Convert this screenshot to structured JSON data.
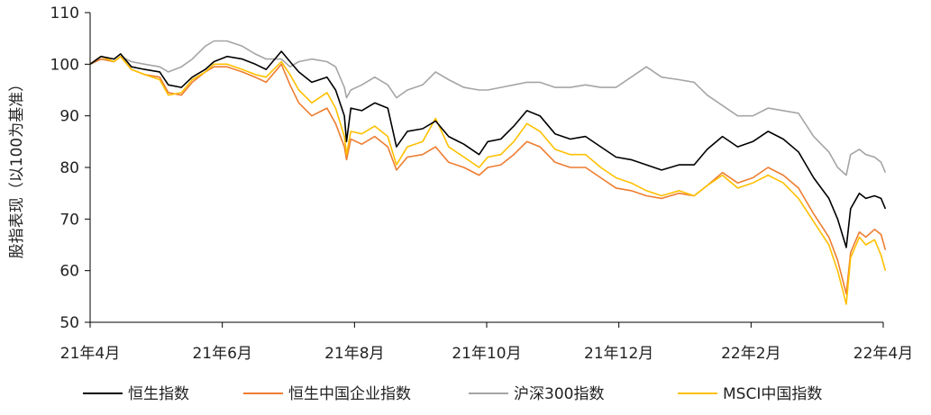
{
  "chart_data": {
    "type": "line",
    "title": "",
    "xlabel": "",
    "ylabel": "股指表现（以100为基准）",
    "ylim": [
      50,
      110
    ],
    "yticks": [
      "50",
      "60",
      "70",
      "80",
      "90",
      "100",
      "110"
    ],
    "xticks": [
      "21年4月",
      "21年6月",
      "21年8月",
      "21年10月",
      "21年12月",
      "22年2月",
      "22年4月"
    ],
    "xlim": [
      "2021-04-01",
      "2022-04-01"
    ],
    "grid": false,
    "legend_position": "bottom",
    "series": [
      {
        "name": "恒生指数",
        "color": "#000000",
        "points": [
          [
            "2021-04-01",
            100
          ],
          [
            "2021-04-06",
            101.5
          ],
          [
            "2021-04-12",
            101
          ],
          [
            "2021-04-15",
            102
          ],
          [
            "2021-04-20",
            99.5
          ],
          [
            "2021-04-26",
            99
          ],
          [
            "2021-05-03",
            98.5
          ],
          [
            "2021-05-07",
            96
          ],
          [
            "2021-05-13",
            95.5
          ],
          [
            "2021-05-18",
            97.5
          ],
          [
            "2021-05-24",
            99
          ],
          [
            "2021-05-28",
            100.5
          ],
          [
            "2021-06-03",
            101.5
          ],
          [
            "2021-06-10",
            101
          ],
          [
            "2021-06-16",
            100
          ],
          [
            "2021-06-21",
            99
          ],
          [
            "2021-06-28",
            102.5
          ],
          [
            "2021-07-02",
            100.5
          ],
          [
            "2021-07-06",
            98.5
          ],
          [
            "2021-07-12",
            96.5
          ],
          [
            "2021-07-19",
            97.5
          ],
          [
            "2021-07-23",
            95
          ],
          [
            "2021-07-27",
            90
          ],
          [
            "2021-07-28",
            85
          ],
          [
            "2021-07-30",
            91.5
          ],
          [
            "2021-08-04",
            91
          ],
          [
            "2021-08-10",
            92.5
          ],
          [
            "2021-08-16",
            91.5
          ],
          [
            "2021-08-20",
            84
          ],
          [
            "2021-08-25",
            87
          ],
          [
            "2021-09-01",
            87.5
          ],
          [
            "2021-09-07",
            89
          ],
          [
            "2021-09-13",
            86
          ],
          [
            "2021-09-20",
            84.5
          ],
          [
            "2021-09-27",
            82.5
          ],
          [
            "2021-10-01",
            85
          ],
          [
            "2021-10-07",
            85.5
          ],
          [
            "2021-10-13",
            88
          ],
          [
            "2021-10-19",
            91
          ],
          [
            "2021-10-25",
            90
          ],
          [
            "2021-11-01",
            86.5
          ],
          [
            "2021-11-08",
            85.5
          ],
          [
            "2021-11-15",
            86
          ],
          [
            "2021-11-22",
            84
          ],
          [
            "2021-11-29",
            82
          ],
          [
            "2021-12-06",
            81.5
          ],
          [
            "2021-12-13",
            80.5
          ],
          [
            "2021-12-20",
            79.5
          ],
          [
            "2021-12-28",
            80.5
          ],
          [
            "2022-01-04",
            80.5
          ],
          [
            "2022-01-10",
            83.5
          ],
          [
            "2022-01-17",
            86
          ],
          [
            "2022-01-24",
            84
          ],
          [
            "2022-01-31",
            85
          ],
          [
            "2022-02-07",
            87
          ],
          [
            "2022-02-14",
            85.5
          ],
          [
            "2022-02-21",
            83
          ],
          [
            "2022-02-28",
            78
          ],
          [
            "2022-03-07",
            74
          ],
          [
            "2022-03-11",
            70
          ],
          [
            "2022-03-15",
            64.5
          ],
          [
            "2022-03-17",
            72
          ],
          [
            "2022-03-21",
            75
          ],
          [
            "2022-03-24",
            74
          ],
          [
            "2022-03-28",
            74.5
          ],
          [
            "2022-03-31",
            74
          ],
          [
            "2022-04-02",
            72
          ]
        ]
      },
      {
        "name": "恒生中国企业指数",
        "color": "#ED7D31",
        "points": [
          [
            "2021-04-01",
            100
          ],
          [
            "2021-04-06",
            101
          ],
          [
            "2021-04-12",
            100.5
          ],
          [
            "2021-04-15",
            101.5
          ],
          [
            "2021-04-20",
            99
          ],
          [
            "2021-04-26",
            98
          ],
          [
            "2021-05-03",
            97.5
          ],
          [
            "2021-05-07",
            94.5
          ],
          [
            "2021-05-13",
            94
          ],
          [
            "2021-05-18",
            96.5
          ],
          [
            "2021-05-24",
            98.5
          ],
          [
            "2021-05-28",
            99.5
          ],
          [
            "2021-06-03",
            99.5
          ],
          [
            "2021-06-10",
            98.5
          ],
          [
            "2021-06-16",
            97.5
          ],
          [
            "2021-06-21",
            96.5
          ],
          [
            "2021-06-28",
            100
          ],
          [
            "2021-07-02",
            96
          ],
          [
            "2021-07-06",
            92.5
          ],
          [
            "2021-07-12",
            90
          ],
          [
            "2021-07-19",
            91.5
          ],
          [
            "2021-07-23",
            88.5
          ],
          [
            "2021-07-27",
            84
          ],
          [
            "2021-07-28",
            81.5
          ],
          [
            "2021-07-30",
            85.5
          ],
          [
            "2021-08-04",
            84.5
          ],
          [
            "2021-08-10",
            86
          ],
          [
            "2021-08-16",
            84
          ],
          [
            "2021-08-20",
            79.5
          ],
          [
            "2021-08-25",
            82
          ],
          [
            "2021-09-01",
            82.5
          ],
          [
            "2021-09-07",
            84
          ],
          [
            "2021-09-13",
            81
          ],
          [
            "2021-09-20",
            80
          ],
          [
            "2021-09-27",
            78.5
          ],
          [
            "2021-10-01",
            80
          ],
          [
            "2021-10-07",
            80.5
          ],
          [
            "2021-10-13",
            82.5
          ],
          [
            "2021-10-19",
            85
          ],
          [
            "2021-10-25",
            84
          ],
          [
            "2021-11-01",
            81
          ],
          [
            "2021-11-08",
            80
          ],
          [
            "2021-11-15",
            80
          ],
          [
            "2021-11-22",
            78
          ],
          [
            "2021-11-29",
            76
          ],
          [
            "2021-12-06",
            75.5
          ],
          [
            "2021-12-13",
            74.5
          ],
          [
            "2021-12-20",
            74
          ],
          [
            "2021-12-28",
            75
          ],
          [
            "2022-01-04",
            74.5
          ],
          [
            "2022-01-10",
            76.5
          ],
          [
            "2022-01-17",
            79
          ],
          [
            "2022-01-24",
            77
          ],
          [
            "2022-01-31",
            78
          ],
          [
            "2022-02-07",
            80
          ],
          [
            "2022-02-14",
            78.5
          ],
          [
            "2022-02-21",
            76
          ],
          [
            "2022-02-28",
            71
          ],
          [
            "2022-03-07",
            66.5
          ],
          [
            "2022-03-11",
            62
          ],
          [
            "2022-03-15",
            55.5
          ],
          [
            "2022-03-17",
            63.5
          ],
          [
            "2022-03-21",
            67.5
          ],
          [
            "2022-03-24",
            66.5
          ],
          [
            "2022-03-28",
            68
          ],
          [
            "2022-03-31",
            67
          ],
          [
            "2022-04-02",
            64
          ]
        ]
      },
      {
        "name": "沪深300指数",
        "color": "#A5A5A5",
        "points": [
          [
            "2021-04-01",
            100
          ],
          [
            "2021-04-06",
            101
          ],
          [
            "2021-04-12",
            100.5
          ],
          [
            "2021-04-15",
            101.5
          ],
          [
            "2021-04-20",
            100.5
          ],
          [
            "2021-04-26",
            100
          ],
          [
            "2021-05-03",
            99.5
          ],
          [
            "2021-05-07",
            98.5
          ],
          [
            "2021-05-13",
            99.5
          ],
          [
            "2021-05-18",
            101
          ],
          [
            "2021-05-24",
            103.5
          ],
          [
            "2021-05-28",
            104.5
          ],
          [
            "2021-06-03",
            104.5
          ],
          [
            "2021-06-10",
            103.5
          ],
          [
            "2021-06-16",
            102
          ],
          [
            "2021-06-21",
            101
          ],
          [
            "2021-06-28",
            101
          ],
          [
            "2021-07-02",
            99.5
          ],
          [
            "2021-07-06",
            100.5
          ],
          [
            "2021-07-12",
            101
          ],
          [
            "2021-07-19",
            100.5
          ],
          [
            "2021-07-23",
            99.5
          ],
          [
            "2021-07-27",
            95.5
          ],
          [
            "2021-07-28",
            93.5
          ],
          [
            "2021-07-30",
            95
          ],
          [
            "2021-08-04",
            96
          ],
          [
            "2021-08-10",
            97.5
          ],
          [
            "2021-08-16",
            96
          ],
          [
            "2021-08-20",
            93.5
          ],
          [
            "2021-08-25",
            95
          ],
          [
            "2021-09-01",
            96
          ],
          [
            "2021-09-07",
            98.5
          ],
          [
            "2021-09-13",
            97
          ],
          [
            "2021-09-20",
            95.5
          ],
          [
            "2021-09-27",
            95
          ],
          [
            "2021-10-01",
            95
          ],
          [
            "2021-10-07",
            95.5
          ],
          [
            "2021-10-13",
            96
          ],
          [
            "2021-10-19",
            96.5
          ],
          [
            "2021-10-25",
            96.5
          ],
          [
            "2021-11-01",
            95.5
          ],
          [
            "2021-11-08",
            95.5
          ],
          [
            "2021-11-15",
            96
          ],
          [
            "2021-11-22",
            95.5
          ],
          [
            "2021-11-29",
            95.5
          ],
          [
            "2021-12-06",
            97.5
          ],
          [
            "2021-12-13",
            99.5
          ],
          [
            "2021-12-20",
            97.5
          ],
          [
            "2021-12-28",
            97
          ],
          [
            "2022-01-04",
            96.5
          ],
          [
            "2022-01-10",
            94
          ],
          [
            "2022-01-17",
            92
          ],
          [
            "2022-01-24",
            90
          ],
          [
            "2022-01-31",
            90
          ],
          [
            "2022-02-07",
            91.5
          ],
          [
            "2022-02-14",
            91
          ],
          [
            "2022-02-21",
            90.5
          ],
          [
            "2022-02-28",
            86
          ],
          [
            "2022-03-07",
            83
          ],
          [
            "2022-03-11",
            80
          ],
          [
            "2022-03-15",
            78.5
          ],
          [
            "2022-03-17",
            82.5
          ],
          [
            "2022-03-21",
            83.5
          ],
          [
            "2022-03-24",
            82.5
          ],
          [
            "2022-03-28",
            82
          ],
          [
            "2022-03-31",
            81
          ],
          [
            "2022-04-02",
            79
          ]
        ]
      },
      {
        "name": "MSCI中国指数",
        "color": "#FFC000",
        "points": [
          [
            "2021-04-01",
            100
          ],
          [
            "2021-04-06",
            101.5
          ],
          [
            "2021-04-12",
            100.5
          ],
          [
            "2021-04-15",
            101.5
          ],
          [
            "2021-04-20",
            99
          ],
          [
            "2021-04-26",
            98
          ],
          [
            "2021-05-03",
            97
          ],
          [
            "2021-05-07",
            94
          ],
          [
            "2021-05-13",
            94.5
          ],
          [
            "2021-05-18",
            97
          ],
          [
            "2021-05-24",
            98.5
          ],
          [
            "2021-05-28",
            100
          ],
          [
            "2021-06-03",
            100
          ],
          [
            "2021-06-10",
            99
          ],
          [
            "2021-06-16",
            98
          ],
          [
            "2021-06-21",
            97.5
          ],
          [
            "2021-06-28",
            100.5
          ],
          [
            "2021-07-02",
            98
          ],
          [
            "2021-07-06",
            95
          ],
          [
            "2021-07-12",
            92.5
          ],
          [
            "2021-07-19",
            94.5
          ],
          [
            "2021-07-23",
            91.5
          ],
          [
            "2021-07-27",
            86
          ],
          [
            "2021-07-28",
            82.5
          ],
          [
            "2021-07-30",
            87
          ],
          [
            "2021-08-04",
            86.5
          ],
          [
            "2021-08-10",
            88
          ],
          [
            "2021-08-16",
            86
          ],
          [
            "2021-08-20",
            80.5
          ],
          [
            "2021-08-25",
            84
          ],
          [
            "2021-09-01",
            85
          ],
          [
            "2021-09-07",
            89.5
          ],
          [
            "2021-09-13",
            84
          ],
          [
            "2021-09-20",
            82
          ],
          [
            "2021-09-27",
            80
          ],
          [
            "2021-10-01",
            82
          ],
          [
            "2021-10-07",
            82.5
          ],
          [
            "2021-10-13",
            85
          ],
          [
            "2021-10-19",
            88.5
          ],
          [
            "2021-10-25",
            87
          ],
          [
            "2021-11-01",
            83.5
          ],
          [
            "2021-11-08",
            82.5
          ],
          [
            "2021-11-15",
            82.5
          ],
          [
            "2021-11-22",
            80
          ],
          [
            "2021-11-29",
            78
          ],
          [
            "2021-12-06",
            77
          ],
          [
            "2021-12-13",
            75.5
          ],
          [
            "2021-12-20",
            74.5
          ],
          [
            "2021-12-28",
            75.5
          ],
          [
            "2022-01-04",
            74.5
          ],
          [
            "2022-01-10",
            76.5
          ],
          [
            "2022-01-17",
            78.5
          ],
          [
            "2022-01-24",
            76
          ],
          [
            "2022-01-31",
            77
          ],
          [
            "2022-02-07",
            78.5
          ],
          [
            "2022-02-14",
            77
          ],
          [
            "2022-02-21",
            74
          ],
          [
            "2022-02-28",
            69.5
          ],
          [
            "2022-03-07",
            65
          ],
          [
            "2022-03-11",
            60
          ],
          [
            "2022-03-15",
            53.5
          ],
          [
            "2022-03-17",
            62.5
          ],
          [
            "2022-03-21",
            66.5
          ],
          [
            "2022-03-24",
            65
          ],
          [
            "2022-03-28",
            66
          ],
          [
            "2022-03-31",
            63
          ],
          [
            "2022-04-02",
            60
          ]
        ]
      }
    ]
  }
}
